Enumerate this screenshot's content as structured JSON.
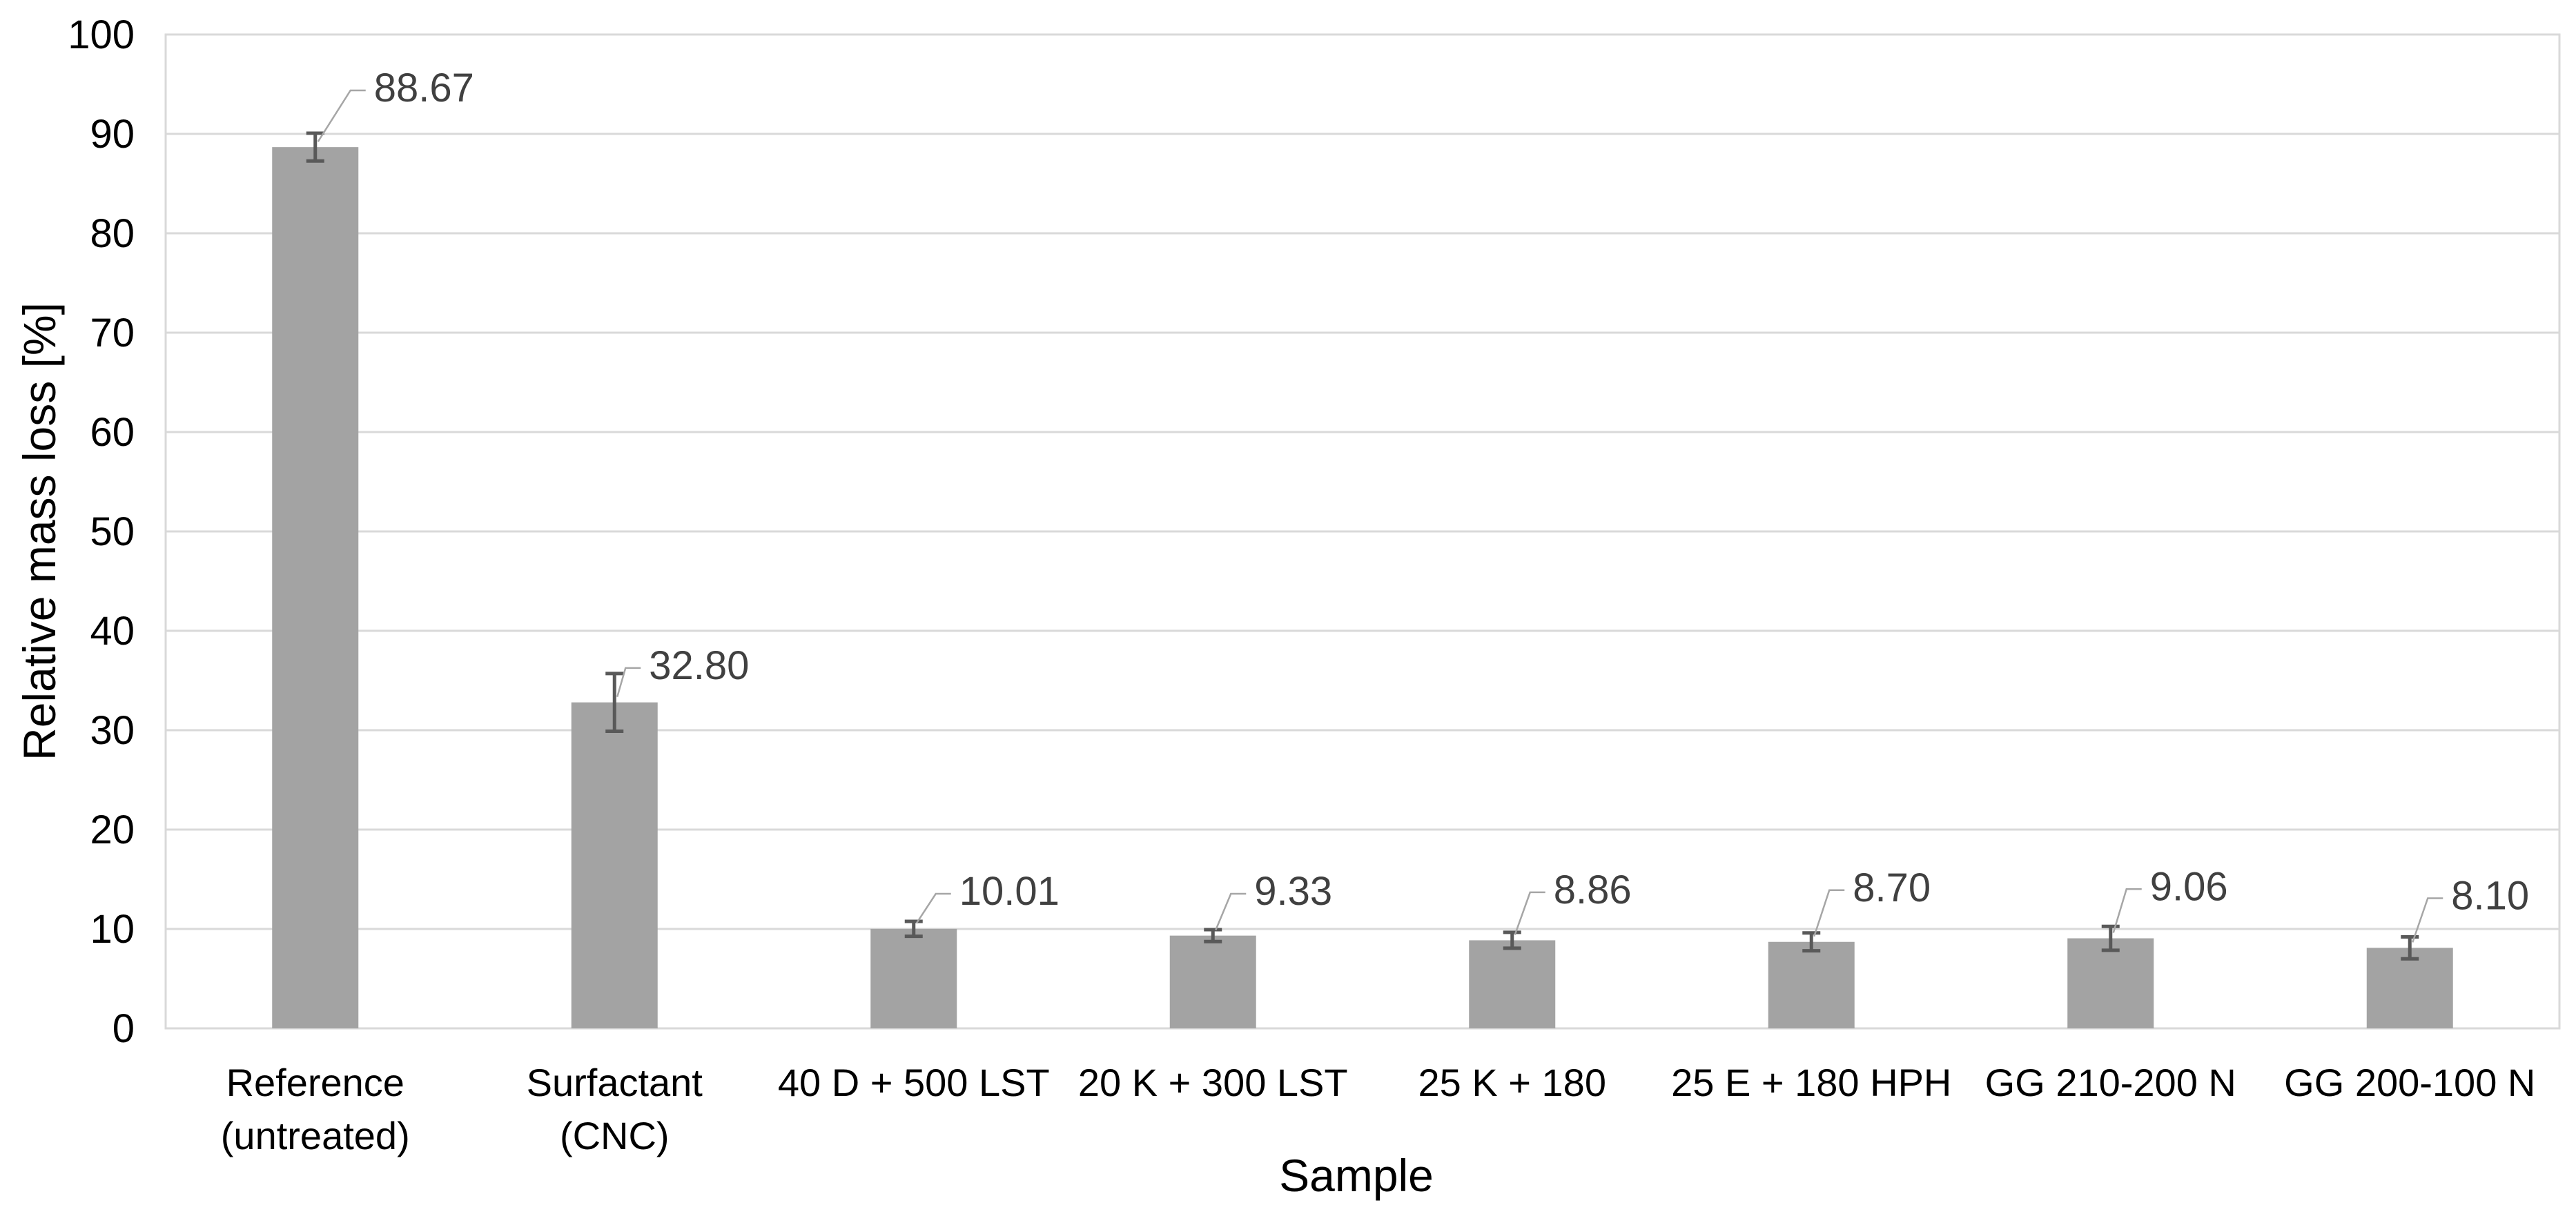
{
  "chart_data": {
    "type": "bar",
    "title": "",
    "xlabel": "Sample",
    "ylabel": "Relative mass loss [%]",
    "categories": [
      "Reference\n(untreated)",
      "Surfactant\n(CNC)",
      "40 D + 500 LST",
      "20 K + 300 LST",
      "25 K + 180",
      "25 E + 180 HPH",
      "GG 210-200 N",
      "GG 200-100 N"
    ],
    "values": [
      88.67,
      32.8,
      10.01,
      9.33,
      8.86,
      8.7,
      9.06,
      8.1
    ],
    "data_labels": [
      "88.67",
      "32.80",
      "10.01",
      "9.33",
      "8.86",
      "8.70",
      "9.06",
      "8.10"
    ],
    "error_bars_est": [
      1.4,
      2.9,
      0.75,
      0.6,
      0.8,
      0.9,
      1.2,
      1.1
    ],
    "yticks": [
      0,
      10,
      20,
      30,
      40,
      50,
      60,
      70,
      80,
      90,
      100
    ],
    "ylim": [
      0,
      100
    ],
    "grid": true,
    "gridlines": "horizontal",
    "legend": null,
    "bar_orientation": "vertical",
    "colors": {
      "bar": "#A3A3A3",
      "gridline": "#D9D9D9",
      "plot_border": "#D9D9D9",
      "error_bar": "#595959",
      "leader_line": "#A6A6A6",
      "data_label_text": "#404040",
      "axis_text": "#000000",
      "background": "#FFFFFF"
    }
  }
}
